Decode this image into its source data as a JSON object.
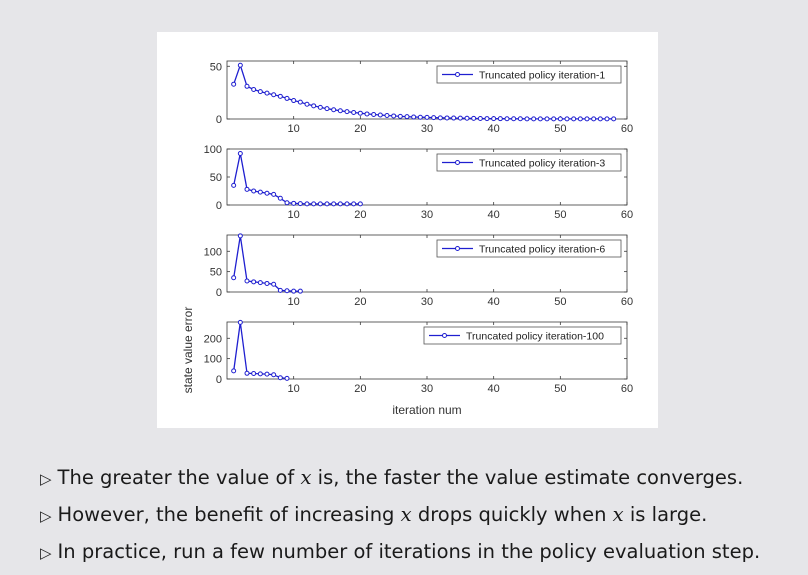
{
  "chart_data": {
    "type": "line",
    "ylabel": "state value error",
    "xlabel": "iteration num",
    "x_ticks": [
      10,
      20,
      30,
      40,
      50,
      60
    ],
    "xlim": [
      0,
      60
    ],
    "line_color": "#1f1fd0",
    "panels": [
      {
        "legend": "Truncated policy iteration-1",
        "ylim": [
          0,
          55
        ],
        "y_ticks": [
          0,
          50
        ],
        "x": [
          1,
          2,
          3,
          4,
          5,
          6,
          7,
          8,
          9,
          10,
          11,
          12,
          13,
          14,
          15,
          16,
          17,
          18,
          19,
          20,
          21,
          22,
          23,
          24,
          25,
          26,
          27,
          28,
          29,
          30,
          31,
          32,
          33,
          34,
          35,
          36,
          37,
          38,
          39,
          40,
          41,
          42,
          43,
          44,
          45,
          46,
          47,
          48,
          49,
          50,
          51,
          52,
          53,
          54,
          55,
          56,
          57,
          58
        ],
        "values": [
          33,
          51,
          31,
          28,
          26,
          24.5,
          23,
          21.5,
          19.5,
          17.5,
          16,
          14,
          12.5,
          11,
          9.8,
          8.8,
          7.8,
          7,
          6.2,
          5.5,
          4.8,
          4.3,
          3.8,
          3.3,
          2.9,
          2.5,
          2.2,
          1.9,
          1.7,
          1.5,
          1.3,
          1.1,
          1.0,
          0.9,
          0.8,
          0.7,
          0.6,
          0.5,
          0.4,
          0.35,
          0.3,
          0.25,
          0.2,
          0.2,
          0.15,
          0.1,
          0.1,
          0.1,
          0.1,
          0.1,
          0.1,
          0.1,
          0.1,
          0.1,
          0.1,
          0.1,
          0.1,
          0.1
        ]
      },
      {
        "legend": "Truncated policy iteration-3",
        "ylim": [
          0,
          100
        ],
        "y_ticks": [
          0,
          50,
          100
        ],
        "x": [
          1,
          2,
          3,
          4,
          5,
          6,
          7,
          8,
          9,
          10,
          11,
          12,
          13,
          14,
          15,
          16,
          17,
          18,
          19,
          20
        ],
        "values": [
          35,
          92,
          28,
          25,
          23,
          21,
          19,
          12,
          4,
          3,
          2.5,
          2,
          2,
          2,
          2,
          2,
          2,
          2,
          2,
          2
        ]
      },
      {
        "legend": "Truncated policy iteration-6",
        "ylim": [
          0,
          140
        ],
        "y_ticks": [
          0,
          50,
          100
        ],
        "x": [
          1,
          2,
          3,
          4,
          5,
          6,
          7,
          8,
          9,
          10,
          11
        ],
        "values": [
          35,
          138,
          27,
          25,
          23,
          21,
          19,
          4,
          3,
          2,
          2
        ]
      },
      {
        "legend": "Truncated policy iteration-100",
        "ylim": [
          0,
          280
        ],
        "y_ticks": [
          0,
          100,
          200
        ],
        "x": [
          1,
          2,
          3,
          4,
          5,
          6,
          7,
          8,
          9
        ],
        "values": [
          40,
          278,
          28,
          27,
          25,
          24,
          21,
          6,
          3
        ]
      }
    ]
  },
  "bullets": [
    {
      "pre": "The greater the value of ",
      "var": "x",
      "post": " is, the faster the value estimate converges."
    },
    {
      "pre": "However, the benefit of increasing ",
      "var": "x",
      "mid": " drops quickly when ",
      "var2": "x",
      "post": " is large."
    },
    {
      "pre": "In practice, run a few number of iterations in the policy evaluation step.",
      "post": ""
    }
  ],
  "bullet_symbol": "▷"
}
